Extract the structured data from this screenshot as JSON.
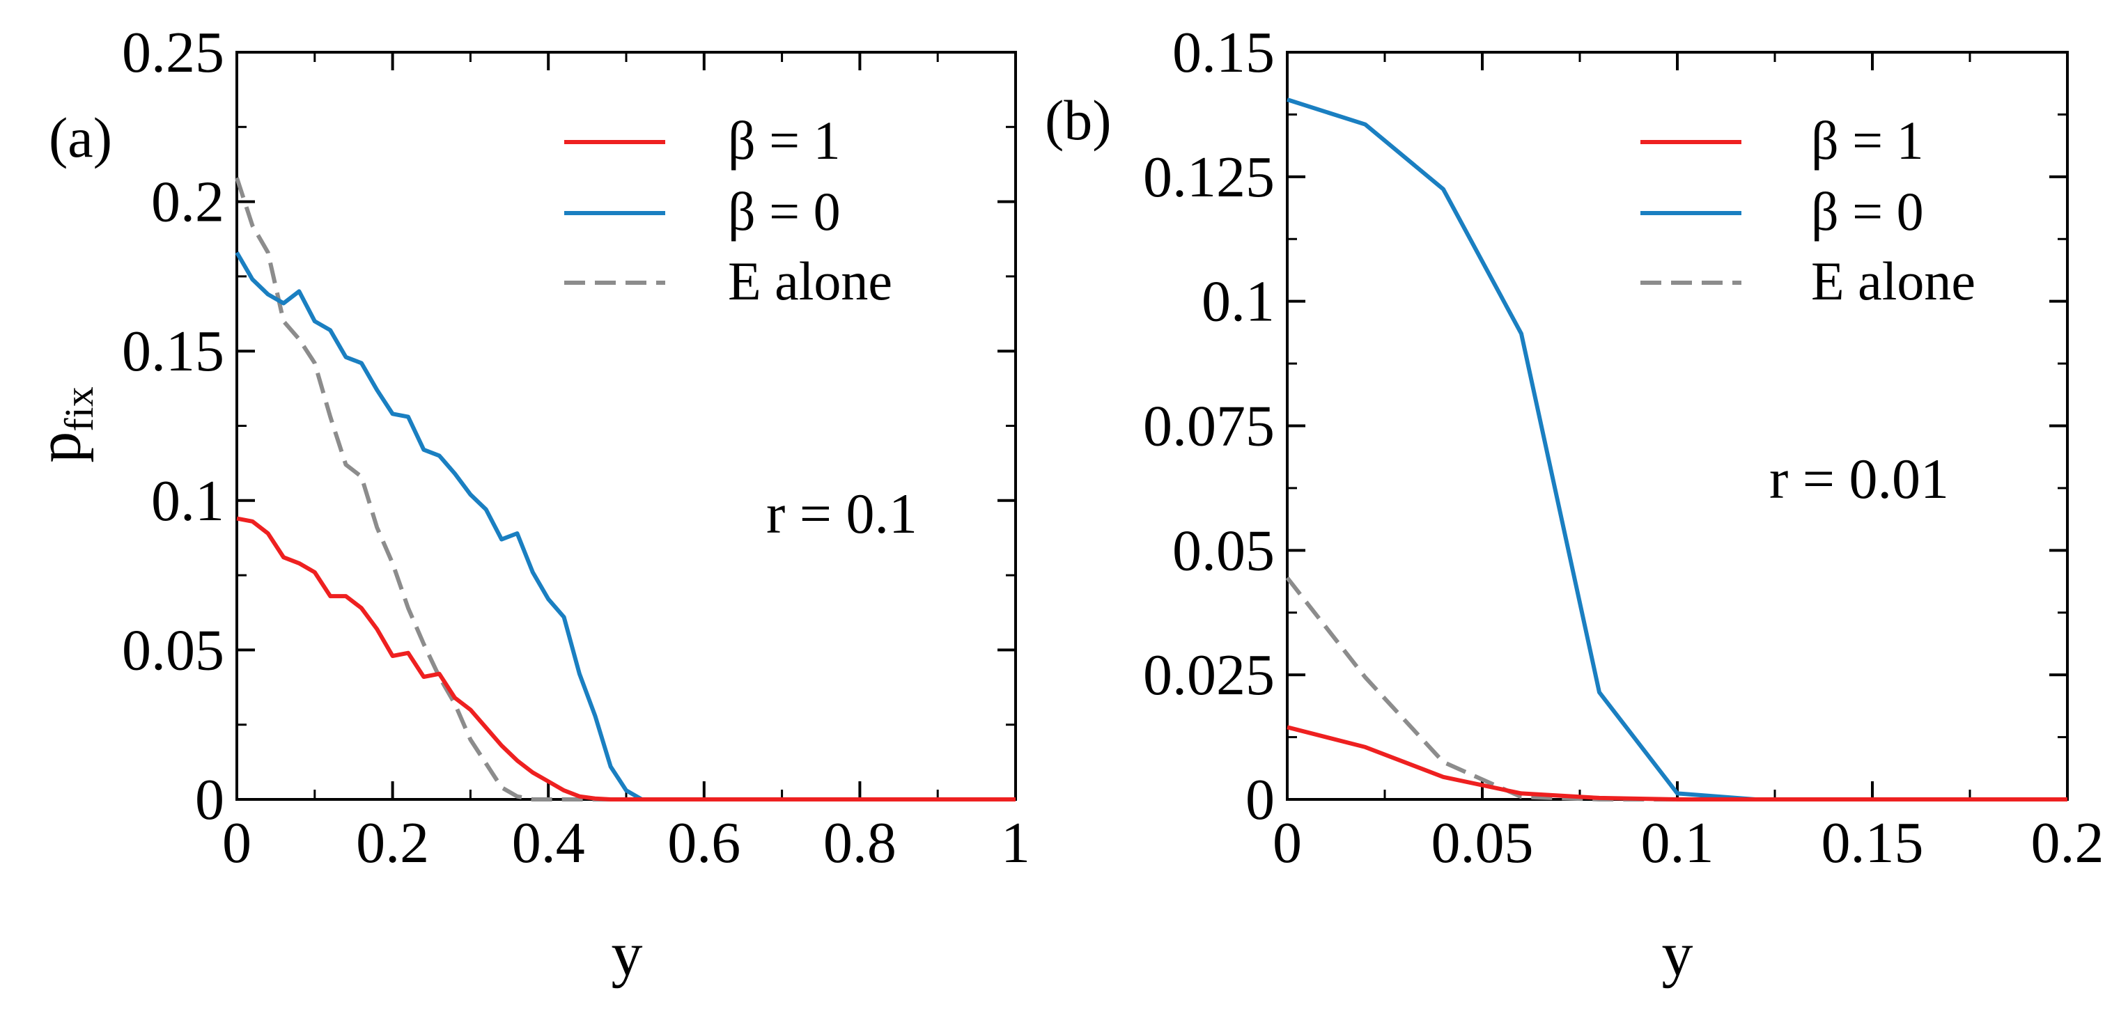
{
  "chart_data": [
    {
      "type": "line",
      "panel_label": "(a)",
      "xlabel": "y",
      "ylabel_main": "p",
      "ylabel_sub": "fix",
      "xlim": [
        0,
        1
      ],
      "ylim": [
        0,
        0.25
      ],
      "xticks": [
        0,
        0.2,
        0.4,
        0.6,
        0.8,
        1
      ],
      "xtick_labels": [
        "0",
        "0.2",
        "0.4",
        "0.6",
        "0.8",
        "1"
      ],
      "yticks": [
        0,
        0.05,
        0.1,
        0.15,
        0.2,
        0.25
      ],
      "ytick_labels": [
        "0",
        "0.05",
        "0.1",
        "0.15",
        "0.2",
        "0.25"
      ],
      "annotation": "r = 0.1",
      "legend_position": "top-right",
      "series": [
        {
          "name": "β = 1",
          "color": "#ee2020",
          "style": "solid",
          "x": [
            0,
            0.02,
            0.04,
            0.06,
            0.08,
            0.1,
            0.12,
            0.14,
            0.16,
            0.18,
            0.2,
            0.22,
            0.24,
            0.26,
            0.28,
            0.3,
            0.32,
            0.34,
            0.36,
            0.38,
            0.4,
            0.42,
            0.44,
            0.46,
            0.48,
            0.5,
            0.52,
            0.6,
            0.7,
            0.8,
            0.9,
            1.0
          ],
          "values": [
            0.094,
            0.093,
            0.089,
            0.081,
            0.079,
            0.076,
            0.068,
            0.068,
            0.064,
            0.057,
            0.048,
            0.049,
            0.041,
            0.042,
            0.034,
            0.03,
            0.024,
            0.018,
            0.013,
            0.009,
            0.006,
            0.003,
            0.001,
            0.0003,
            0,
            0,
            0,
            0,
            0,
            0,
            0,
            0
          ]
        },
        {
          "name": "β = 0",
          "color": "#1a7fc1",
          "style": "solid",
          "x": [
            0,
            0.02,
            0.04,
            0.06,
            0.08,
            0.1,
            0.12,
            0.14,
            0.16,
            0.18,
            0.2,
            0.22,
            0.24,
            0.26,
            0.28,
            0.3,
            0.32,
            0.34,
            0.36,
            0.38,
            0.4,
            0.42,
            0.44,
            0.46,
            0.48,
            0.5,
            0.52,
            0.6,
            0.7,
            0.8,
            0.9,
            1.0
          ],
          "values": [
            0.183,
            0.174,
            0.169,
            0.166,
            0.17,
            0.16,
            0.157,
            0.148,
            0.146,
            0.137,
            0.129,
            0.128,
            0.117,
            0.115,
            0.109,
            0.102,
            0.097,
            0.087,
            0.089,
            0.076,
            0.067,
            0.061,
            0.042,
            0.028,
            0.011,
            0.003,
            0,
            0,
            0,
            0,
            0,
            0
          ]
        },
        {
          "name": "E alone",
          "color": "#8c8c8c",
          "style": "dashed",
          "x": [
            0,
            0.02,
            0.04,
            0.06,
            0.08,
            0.1,
            0.12,
            0.14,
            0.16,
            0.18,
            0.2,
            0.22,
            0.24,
            0.26,
            0.28,
            0.3,
            0.32,
            0.34,
            0.36,
            0.38,
            0.4,
            0.5,
            0.6,
            0.7,
            0.8,
            0.9,
            1.0
          ],
          "values": [
            0.208,
            0.192,
            0.183,
            0.16,
            0.154,
            0.146,
            0.128,
            0.112,
            0.108,
            0.091,
            0.079,
            0.064,
            0.052,
            0.041,
            0.032,
            0.02,
            0.012,
            0.004,
            0.001,
            0,
            0,
            0,
            0,
            0,
            0,
            0,
            0
          ]
        }
      ]
    },
    {
      "type": "line",
      "panel_label": "(b)",
      "xlabel": "y",
      "xlim": [
        0,
        0.2
      ],
      "ylim": [
        0,
        0.15
      ],
      "xticks": [
        0,
        0.05,
        0.1,
        0.15,
        0.2
      ],
      "xtick_labels": [
        "0",
        "0.05",
        "0.1",
        "0.15",
        "0.2"
      ],
      "yticks": [
        0,
        0.025,
        0.05,
        0.075,
        0.1,
        0.125,
        0.15
      ],
      "ytick_labels": [
        "0",
        "0.025",
        "0.05",
        "0.075",
        "0.1",
        "0.125",
        "0.15"
      ],
      "annotation": "r = 0.01",
      "legend_position": "top-right",
      "series": [
        {
          "name": "β = 1",
          "color": "#ee2020",
          "style": "solid",
          "x": [
            0,
            0.02,
            0.04,
            0.06,
            0.08,
            0.1,
            0.12,
            0.14,
            0.16,
            0.18,
            0.2
          ],
          "values": [
            0.0145,
            0.0105,
            0.0045,
            0.0012,
            0.0003,
            0,
            0,
            0,
            0,
            0,
            0
          ]
        },
        {
          "name": "β = 0",
          "color": "#1a7fc1",
          "style": "solid",
          "x": [
            0,
            0.02,
            0.04,
            0.06,
            0.08,
            0.1,
            0.12,
            0.14,
            0.16,
            0.18,
            0.2
          ],
          "values": [
            0.1405,
            0.1355,
            0.1225,
            0.0935,
            0.0215,
            0.0012,
            0,
            0,
            0,
            0,
            0
          ]
        },
        {
          "name": "E alone",
          "color": "#8c8c8c",
          "style": "dashed",
          "x": [
            0,
            0.02,
            0.04,
            0.06,
            0.08,
            0.1,
            0.12,
            0.14,
            0.16,
            0.18,
            0.2
          ],
          "values": [
            0.0445,
            0.0245,
            0.0075,
            0.0005,
            0,
            0,
            0,
            0,
            0,
            0,
            0
          ]
        }
      ]
    }
  ]
}
